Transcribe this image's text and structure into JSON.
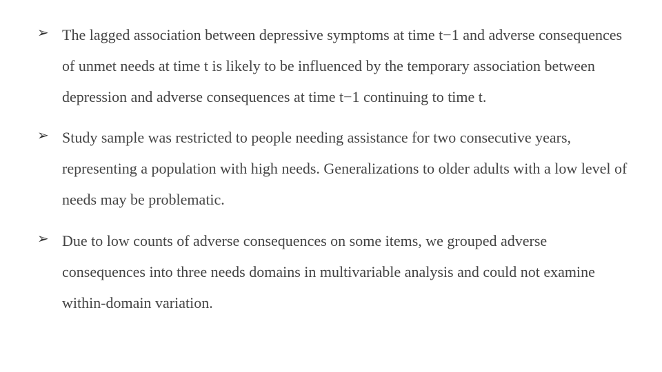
{
  "slide": {
    "background_color": "#ffffff",
    "text_color": "#444444",
    "font_family": "Times New Roman",
    "font_size_pt": 22,
    "line_height": 2.05,
    "bullet_glyph": "➢",
    "bullet_color": "#333333",
    "bullets": [
      {
        "text": " The lagged association between depressive symptoms at time t−1 and adverse consequences of unmet needs at time t is likely to be influenced by the temporary association between depression and adverse consequences at time t−1 continuing to time t."
      },
      {
        "text": "Study sample was restricted to people needing assistance for two consecutive years, representing a population with high needs. Generalizations to older adults with a low level of needs may be problematic."
      },
      {
        "text": "Due to low counts of adverse consequences on some items, we grouped adverse consequences into three needs domains in multivariable analysis and could not examine within-domain variation."
      }
    ]
  }
}
